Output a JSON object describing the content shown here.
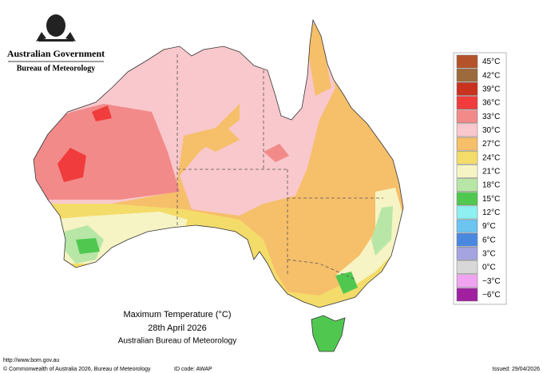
{
  "header": {
    "government": "Australian Government",
    "bureau": "Bureau of Meteorology"
  },
  "map": {
    "title": "Maximum Temperature (°C)",
    "date": "28th April 2026",
    "source": "Australian Bureau of Meteorology"
  },
  "legend": [
    {
      "label": "45°C",
      "color": "#b4532a"
    },
    {
      "label": "42°C",
      "color": "#9c6a3c"
    },
    {
      "label": "39°C",
      "color": "#c8321e"
    },
    {
      "label": "36°C",
      "color": "#f03c3c"
    },
    {
      "label": "33°C",
      "color": "#f28a8a"
    },
    {
      "label": "30°C",
      "color": "#f8c8cc"
    },
    {
      "label": "27°C",
      "color": "#f6bf6a"
    },
    {
      "label": "24°C",
      "color": "#f4dc6a"
    },
    {
      "label": "21°C",
      "color": "#f6f4c4"
    },
    {
      "label": "18°C",
      "color": "#b8e6a6"
    },
    {
      "label": "15°C",
      "color": "#50c850"
    },
    {
      "label": "12°C",
      "color": "#8ef0f0"
    },
    {
      "label": "9°C",
      "color": "#6cc4f0"
    },
    {
      "label": "6°C",
      "color": "#4a88e0"
    },
    {
      "label": "3°C",
      "color": "#a4a4e0"
    },
    {
      "label": "0°C",
      "color": "#d8d8d8"
    },
    {
      "label": "−3°C",
      "color": "#f0a4f0"
    },
    {
      "label": "−6°C",
      "color": "#a020a0"
    }
  ],
  "footer": {
    "url": "http://www.bom.gov.au",
    "copyright": "© Commonwealth of Australia 2026, Bureau of Meteorology",
    "id_code": "ID code: AWAP",
    "issued": "Issued: 29/04/2026"
  }
}
